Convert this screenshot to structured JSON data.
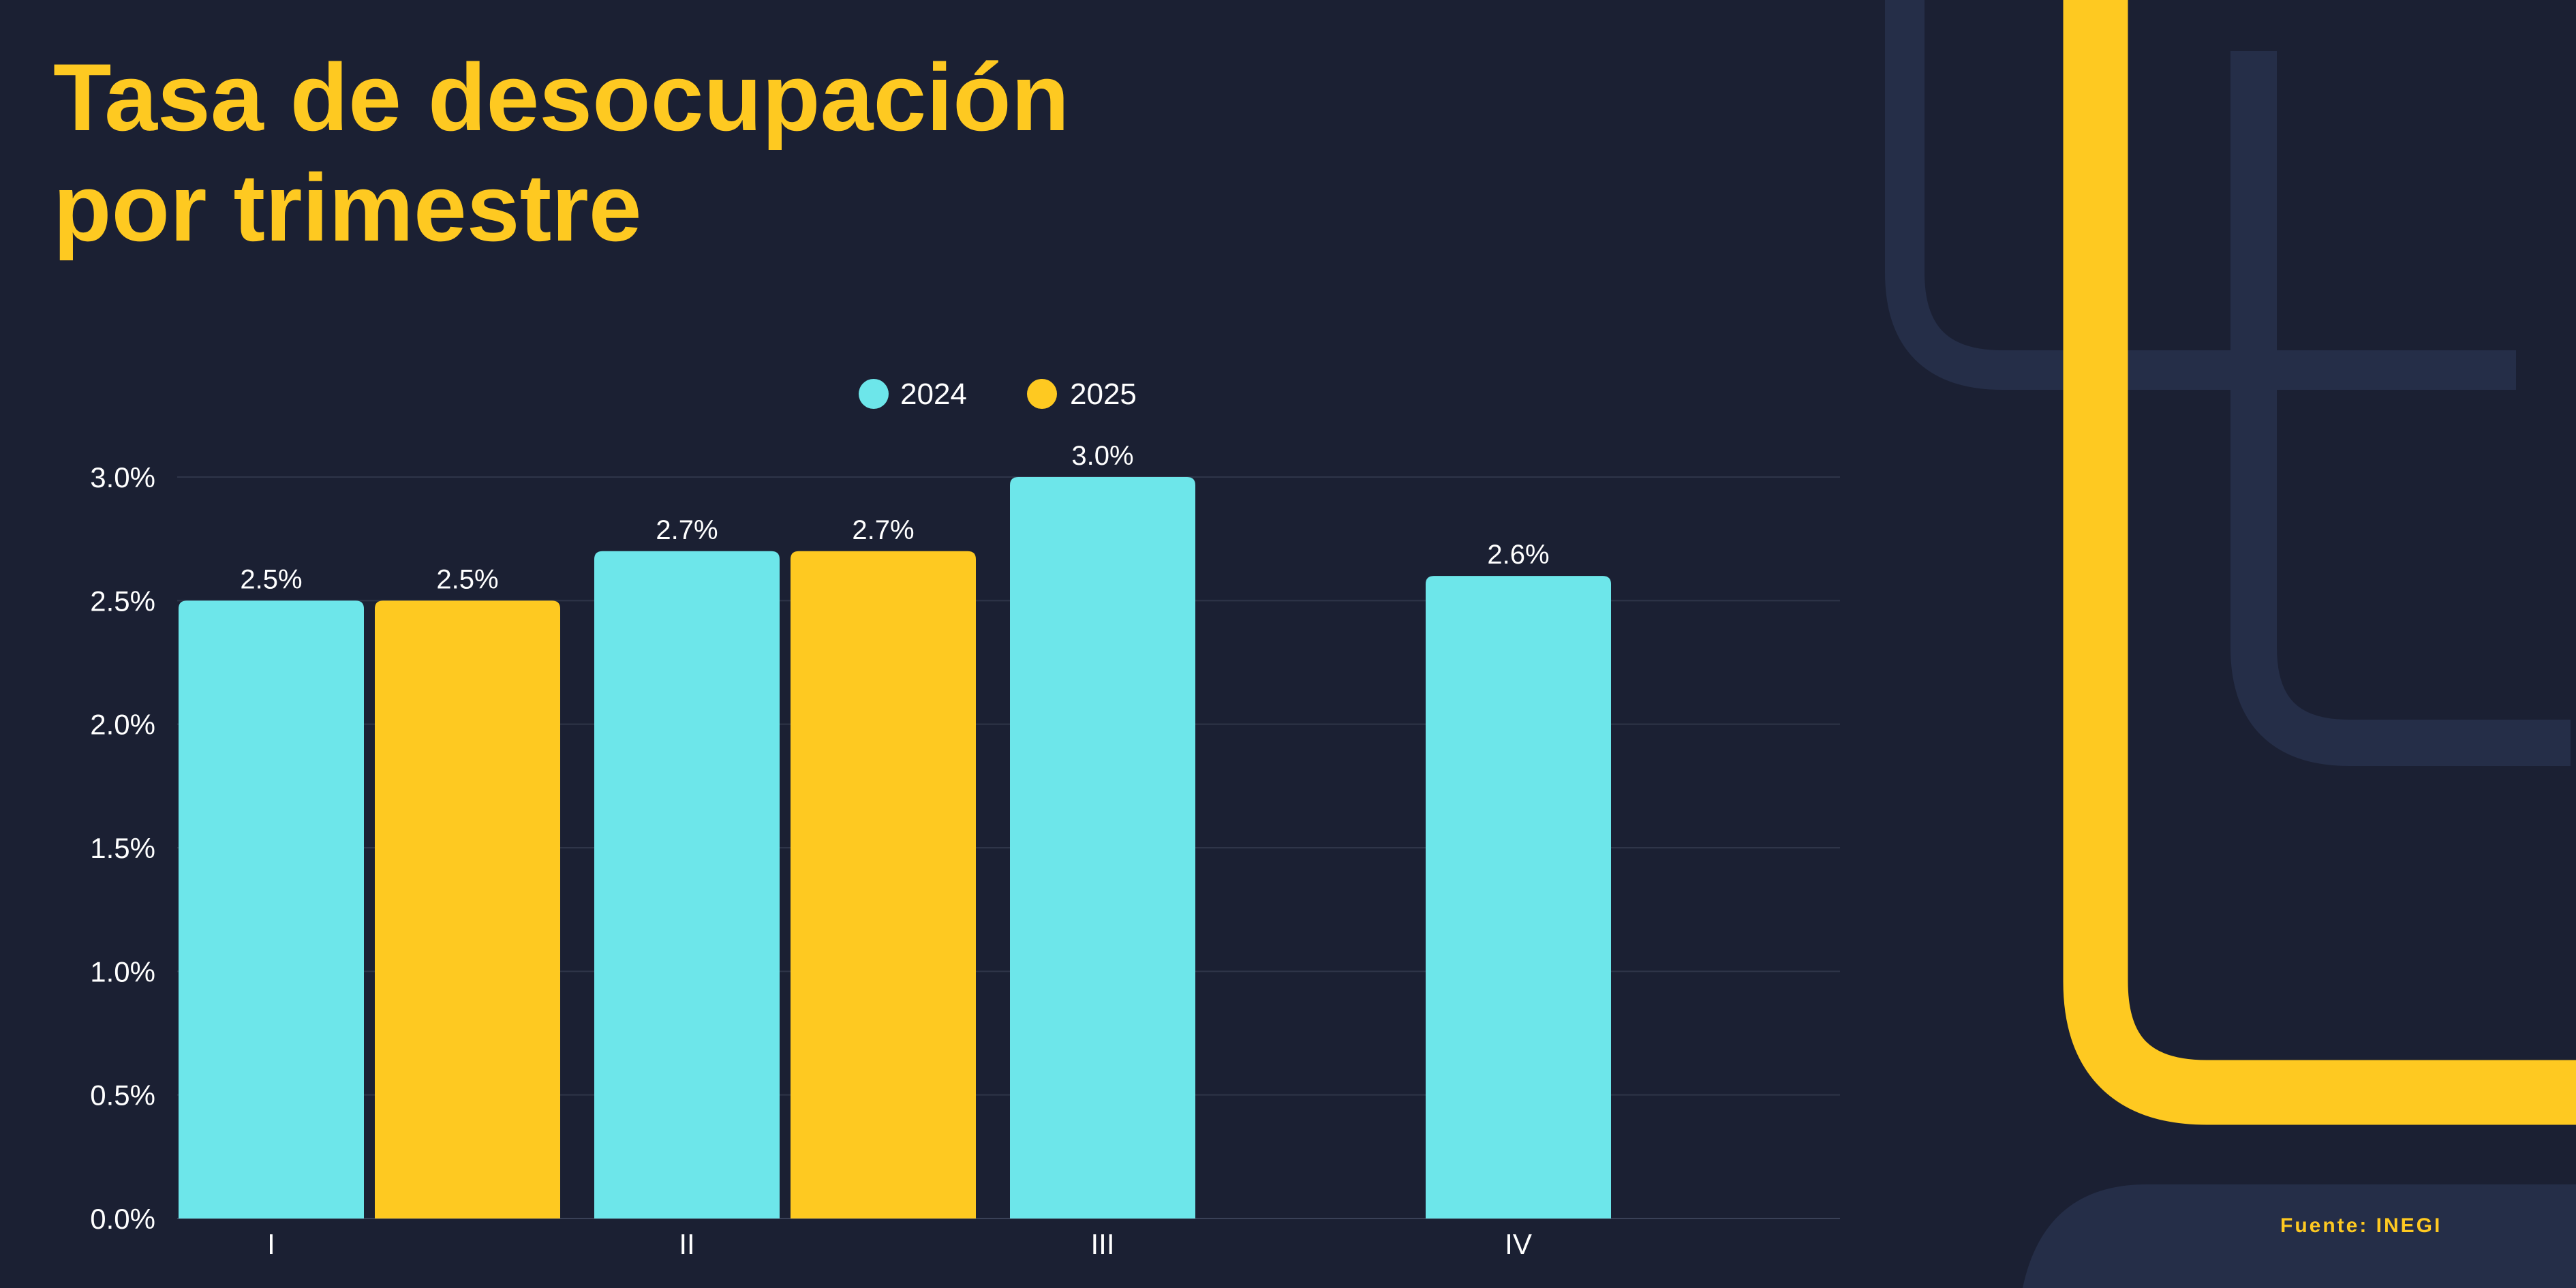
{
  "title": {
    "line1": "Tasa de desocupación",
    "line2": "por trimestre"
  },
  "source": "Fuente: INEGI",
  "colors": {
    "background": "#1b2033",
    "series_2024": "#6de6ea",
    "series_2025": "#fec921",
    "accent": "#fec921",
    "deco_shape": "#252e48",
    "grid": "#2f3549"
  },
  "chart_data": {
    "type": "bar",
    "title": "Tasa de desocupación por trimestre",
    "xlabel": "",
    "ylabel": "",
    "categories": [
      "I",
      "II",
      "III",
      "IV"
    ],
    "series": [
      {
        "name": "2024",
        "values": [
          2.5,
          2.7,
          3.0,
          2.6
        ],
        "labels": [
          "2.5%",
          "2.7%",
          "3.0%",
          "2.6%"
        ]
      },
      {
        "name": "2025",
        "values": [
          2.5,
          2.7,
          null,
          null
        ],
        "labels": [
          "2.5%",
          "2.7%",
          null,
          null
        ]
      }
    ],
    "ylim": [
      0,
      3.0
    ],
    "yticks": [
      0,
      0.5,
      1.0,
      1.5,
      2.0,
      2.5,
      3.0
    ],
    "ytick_labels": [
      "0.0%",
      "0.5%",
      "1.0%",
      "1.5%",
      "2.0%",
      "2.5%",
      "3.0%"
    ],
    "grid": true,
    "legend_position": "top-center"
  }
}
